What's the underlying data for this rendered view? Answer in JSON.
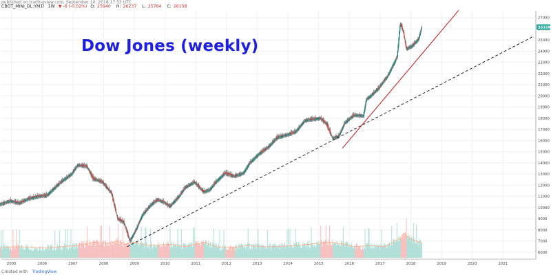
{
  "header": {
    "published_line": "published on tradingview.com, September 10, 2018 17:53 UTC",
    "symbol": "CBOT_MINI_DL:YM1!",
    "interval": "1W",
    "change": "▼ -6 (-0.02%)",
    "open_label": "O:",
    "open": "25940",
    "high_label": "H:",
    "high": "26237",
    "low_label": "L:",
    "low": "25764",
    "close_label": "C:",
    "close": "26158",
    "price_badge": "26158"
  },
  "footer": {
    "created_with": "Created with",
    "brand": "TradingView"
  },
  "colors": {
    "up": "#26a69a",
    "down": "#ef5350",
    "title": "#1f1fe0",
    "trend_red": "#c62828",
    "trend_dashed": "#000000",
    "volume_ma": "#f5b08a"
  },
  "chart_data": {
    "type": "line",
    "title": "Dow Jones (weekly)",
    "x_tick_labels": [
      "2005",
      "2006",
      "2007",
      "2008",
      "2009",
      "2010",
      "2011",
      "2012",
      "2013",
      "2014",
      "2015",
      "2016",
      "2017",
      "2018",
      "2019",
      "2020",
      "2021"
    ],
    "y_tick_labels": [
      "6000",
      "7000",
      "8000",
      "9000",
      "10000",
      "11000",
      "12000",
      "13000",
      "14000",
      "15000",
      "16000",
      "17000",
      "18000",
      "19000",
      "20000",
      "21000",
      "22000",
      "23000",
      "24000",
      "25000",
      "26000",
      "27000"
    ],
    "xlim": [
      2005.0,
      2022.4
    ],
    "ylim": [
      5500,
      27600
    ],
    "series": [
      {
        "type": "line",
        "x": [
          2004.8,
          2005.0,
          2005.3,
          2005.6,
          2005.9,
          2006.2,
          2006.5,
          2006.8,
          2007.0,
          2007.3,
          2007.5,
          2007.8,
          2008.0,
          2008.3,
          2008.6,
          2008.8,
          2009.0,
          2009.2,
          2009.4,
          2009.6,
          2009.9,
          2010.1,
          2010.3,
          2010.5,
          2010.8,
          2011.0,
          2011.3,
          2011.6,
          2011.8,
          2012.0,
          2012.3,
          2012.6,
          2012.9,
          2013.1,
          2013.4,
          2013.7,
          2014.0,
          2014.3,
          2014.6,
          2014.9,
          2015.1,
          2015.4,
          2015.6,
          2015.8,
          2016.0,
          2016.2,
          2016.5,
          2016.8,
          2016.9,
          2017.0,
          2017.3,
          2017.6,
          2017.9,
          2018.0,
          2018.1,
          2018.2,
          2018.4,
          2018.6,
          2018.7
        ],
        "values": [
          10400,
          10300,
          10600,
          10400,
          10800,
          11000,
          11100,
          11900,
          12400,
          13000,
          13800,
          13700,
          12600,
          12300,
          11300,
          9000,
          8700,
          7000,
          8000,
          9300,
          10300,
          10700,
          10500,
          10100,
          11000,
          11800,
          12300,
          11400,
          11600,
          12300,
          13100,
          12800,
          13100,
          14000,
          14800,
          15400,
          16300,
          16500,
          16800,
          17800,
          17900,
          18000,
          17500,
          16200,
          16400,
          17600,
          18300,
          18200,
          19700,
          19900,
          20700,
          21800,
          23500,
          26500,
          25800,
          24200,
          24500,
          25100,
          26158
        ]
      },
      {
        "type": "volume",
        "x": [
          2004.8,
          2005.5,
          2006.5,
          2007.5,
          2008.0,
          2008.5,
          2008.8,
          2009.0,
          2009.3,
          2009.8,
          2010.5,
          2011.0,
          2011.6,
          2012.0,
          2012.5,
          2013.0,
          2013.5,
          2014.0,
          2014.5,
          2015.0,
          2015.6,
          2016.0,
          2016.5,
          2017.0,
          2017.5,
          2018.0,
          2018.1,
          2018.3,
          2018.5,
          2018.7
        ],
        "values": [
          6400,
          6500,
          6400,
          6600,
          6900,
          6800,
          7000,
          6700,
          6900,
          6600,
          6700,
          6500,
          6900,
          6500,
          6400,
          6600,
          6500,
          6500,
          6600,
          6700,
          6900,
          6800,
          6500,
          6600,
          6500,
          7300,
          7700,
          7200,
          7000,
          6800
        ]
      },
      {
        "type": "trendline-red",
        "x": [
          2016.1,
          2019.9
        ],
        "values": [
          15300,
          27700
        ]
      },
      {
        "type": "trendline-dashed",
        "x": [
          2009.1,
          2022.3
        ],
        "values": [
          6500,
          25300
        ]
      }
    ],
    "grid": true,
    "legend": "none"
  }
}
